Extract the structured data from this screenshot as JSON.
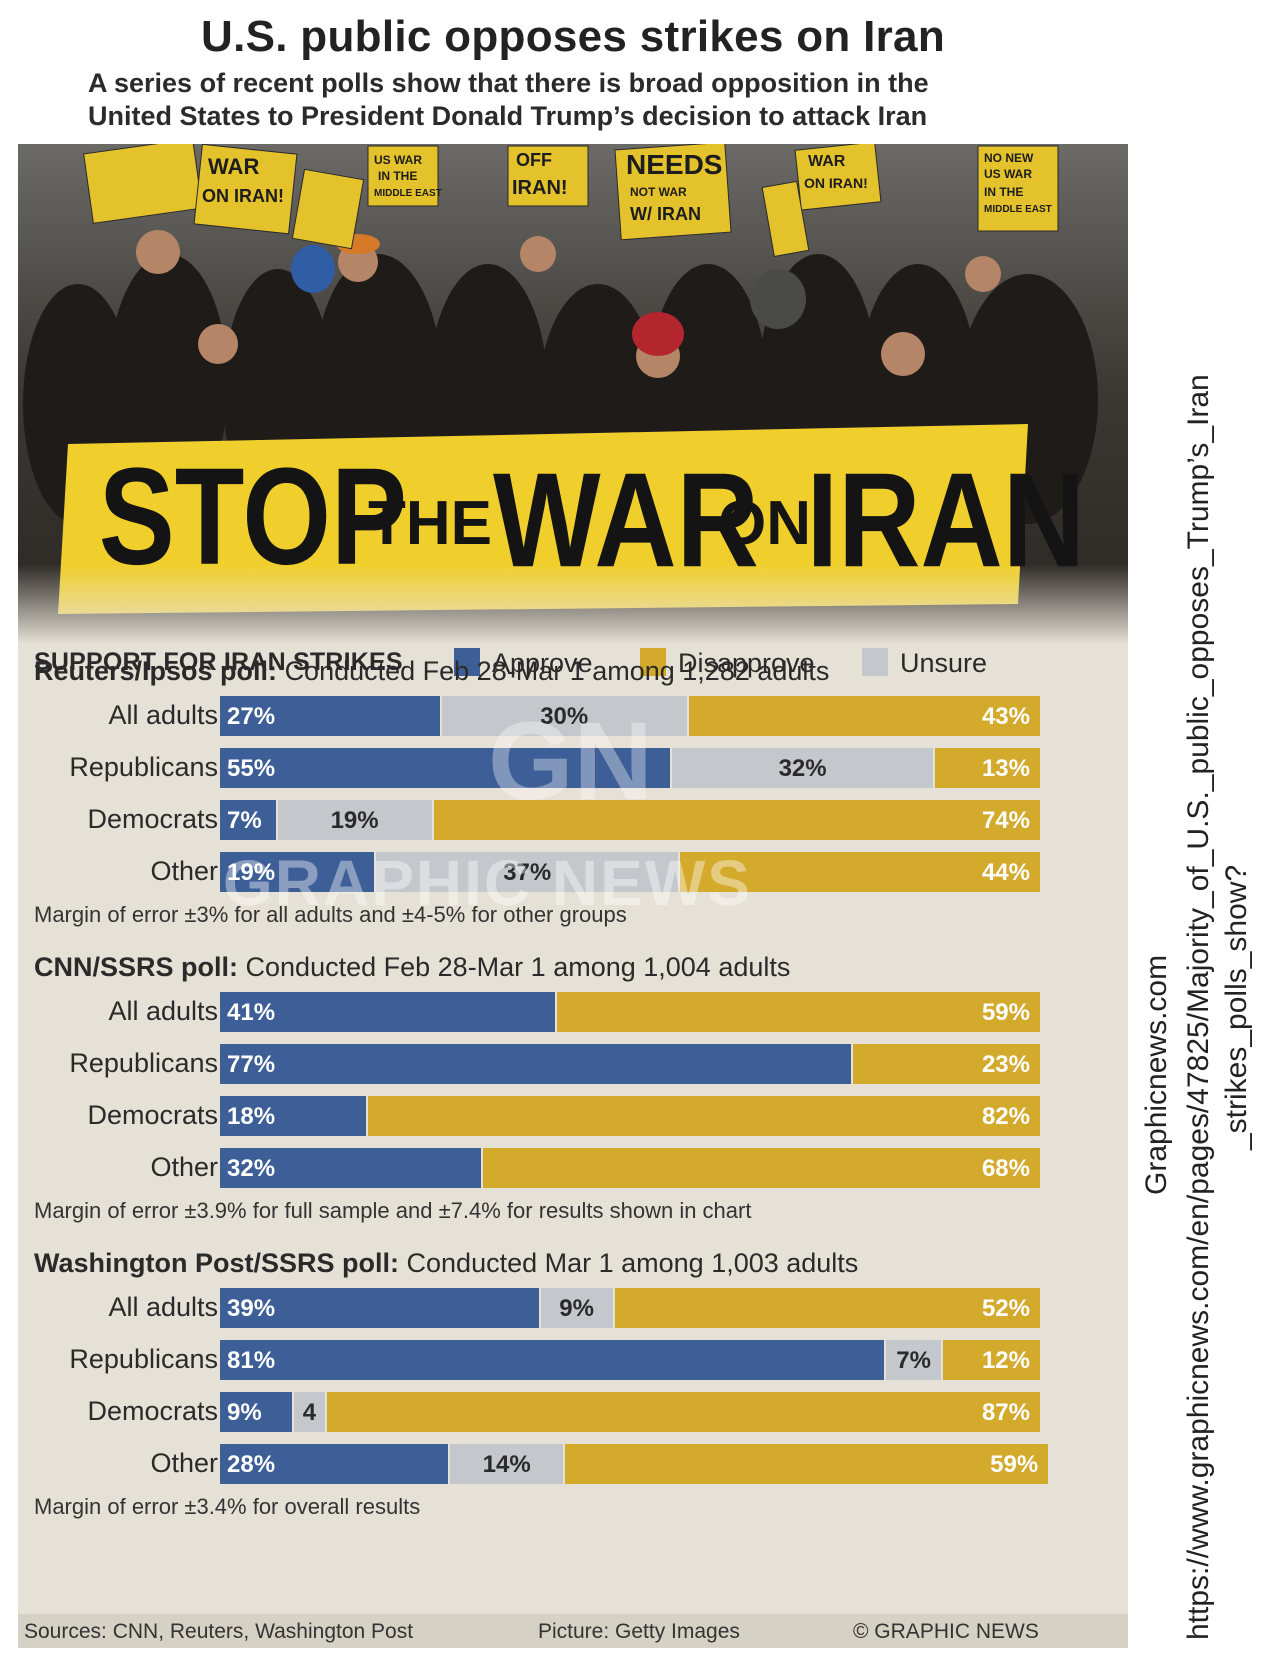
{
  "title": "U.S. public opposes strikes on Iran",
  "subtitle_lines": [
    "A series of recent polls show that there is broad opposition in the",
    "United States to President Donald Trump’s decision to attack Iran"
  ],
  "photo": {
    "banner_words": [
      "STOP",
      "THE",
      "WAR",
      "ON",
      "IRAN"
    ],
    "signs": [
      "WAR ON IRAN!",
      "OFF IRAN!",
      "NEEDS",
      "NOT WAR W/ IRAN",
      "NO NEW US WAR IN THE MIDDLE EAST",
      "US WAR IN THE MIDDLE EAST"
    ]
  },
  "legend": {
    "title": "SUPPORT FOR IRAN STRIKES",
    "items": [
      {
        "label": "Approve",
        "color": "#3d5e97"
      },
      {
        "label": "Disapprove",
        "color": "#d4aa2c"
      },
      {
        "label": "Unsure",
        "color": "#c4c7cb"
      }
    ]
  },
  "chart_data": [
    {
      "type": "bar",
      "stacked": true,
      "orientation": "horizontal",
      "poll": "Reuters/Ipsos poll:",
      "description": "Conducted Feb 28-Mar 1 among 1,282 adults",
      "categories": [
        "All adults",
        "Republicans",
        "Democrats",
        "Other"
      ],
      "series": [
        {
          "name": "Approve",
          "values": [
            27,
            55,
            7,
            19
          ]
        },
        {
          "name": "Unsure",
          "values": [
            30,
            32,
            19,
            37
          ]
        },
        {
          "name": "Disapprove",
          "values": [
            43,
            13,
            74,
            44
          ]
        }
      ],
      "labels": [
        [
          "27%",
          "30%",
          "43%"
        ],
        [
          "55%",
          "32%",
          "13%"
        ],
        [
          "7%",
          "19%",
          "74%"
        ],
        [
          "19%",
          "37%",
          "44%"
        ]
      ],
      "note": "Margin of error ±3% for all adults and ±4-5% for other groups",
      "xlim": [
        0,
        100
      ]
    },
    {
      "type": "bar",
      "stacked": true,
      "orientation": "horizontal",
      "poll": "CNN/SSRS poll:",
      "description": "Conducted Feb 28-Mar 1 among 1,004 adults",
      "categories": [
        "All adults",
        "Republicans",
        "Democrats",
        "Other"
      ],
      "series": [
        {
          "name": "Approve",
          "values": [
            41,
            77,
            18,
            32
          ]
        },
        {
          "name": "Unsure",
          "values": [
            0,
            0,
            0,
            0
          ]
        },
        {
          "name": "Disapprove",
          "values": [
            59,
            23,
            82,
            68
          ]
        }
      ],
      "labels": [
        [
          "41%",
          "",
          "59%"
        ],
        [
          "77%",
          "",
          "23%"
        ],
        [
          "18%",
          "",
          "82%"
        ],
        [
          "32%",
          "",
          "68%"
        ]
      ],
      "note": "Margin of error ±3.9% for full sample and ±7.4% for results shown in chart",
      "xlim": [
        0,
        100
      ]
    },
    {
      "type": "bar",
      "stacked": true,
      "orientation": "horizontal",
      "poll": "Washington Post/SSRS poll:",
      "description": "Conducted Mar 1 among 1,003 adults",
      "categories": [
        "All adults",
        "Republicans",
        "Democrats",
        "Other"
      ],
      "series": [
        {
          "name": "Approve",
          "values": [
            39,
            81,
            9,
            28
          ]
        },
        {
          "name": "Unsure",
          "values": [
            9,
            7,
            4,
            14
          ]
        },
        {
          "name": "Disapprove",
          "values": [
            52,
            12,
            87,
            59
          ]
        }
      ],
      "labels": [
        [
          "39%",
          "9%",
          "52%"
        ],
        [
          "81%",
          "7%",
          "12%"
        ],
        [
          "9%",
          "4",
          "87%"
        ],
        [
          "28%",
          "14%",
          "59%"
        ]
      ],
      "note": "Margin of error ±3.4% for overall results",
      "xlim": [
        0,
        100
      ]
    }
  ],
  "footer": {
    "sources": "Sources: CNN, Reuters, Washington Post",
    "picture": "Picture: Getty Images",
    "credit": "© GRAPHIC NEWS"
  },
  "watermark": {
    "logo": "GN",
    "text": "GRAPHIC NEWS"
  },
  "side_caption": [
    "Graphicnews.com",
    "https://www.graphicnews.com/en/pages/47825/Majority_of_U.S._public_opposes_Trump’s_Iran",
    "_strikes_polls_show?"
  ]
}
